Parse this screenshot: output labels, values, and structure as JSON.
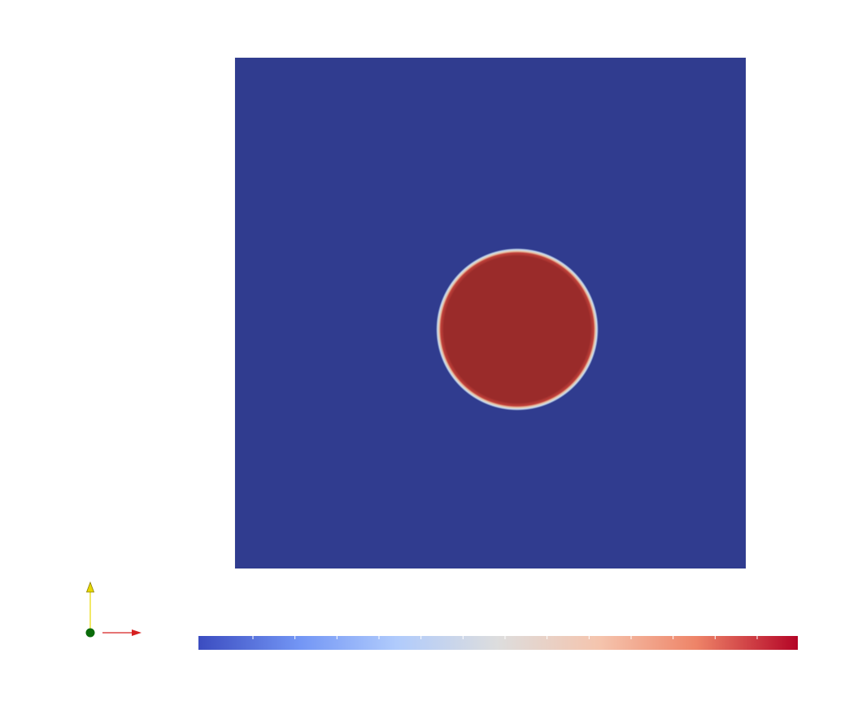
{
  "scene": {
    "background_color": "#ffffff",
    "domain_color": "#303c8f",
    "inclusion_color": "#9a2b2a",
    "interface_gradient": [
      "#9a2b2a",
      "#c0413a",
      "#e8c2a4",
      "#d2e2ee",
      "#7fa6d8",
      "#303c8f"
    ]
  },
  "orientation_axes": {
    "x_axis_color": "#d62020",
    "y_axis_color": "#e8d800",
    "z_axis_color": "#0a6b0a",
    "icons": [
      "x-axis-arrow-icon",
      "y-axis-arrow-icon",
      "z-axis-dot-icon"
    ]
  },
  "colorbar": {
    "colormap": "Cool to Warm",
    "stops": [
      "#3b4cc0",
      "#7396f5",
      "#b0cbfc",
      "#dddddd",
      "#f5c4ad",
      "#ee8468",
      "#b40426"
    ],
    "tick_count": 13
  }
}
